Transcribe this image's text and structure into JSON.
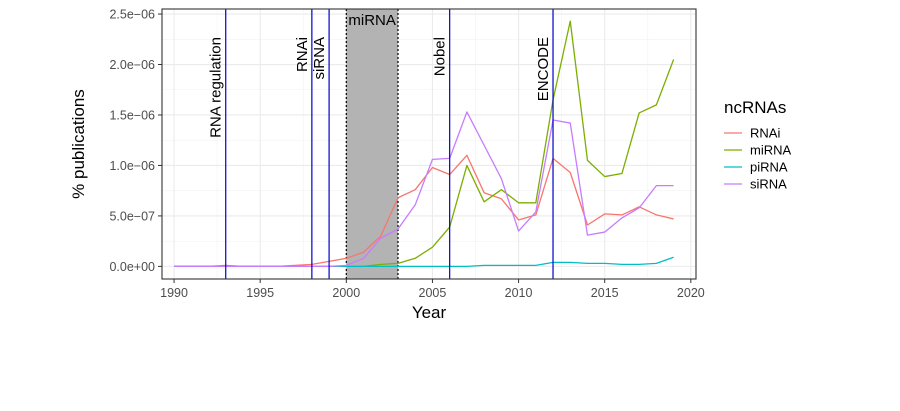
{
  "chart_data": {
    "type": "line",
    "xlabel": "Year",
    "ylabel": "% publications",
    "xlim": [
      1989.3,
      2020.3
    ],
    "ylim": [
      -1.25e-07,
      2.55e-06
    ],
    "x_ticks": [
      1990,
      1995,
      2000,
      2005,
      2010,
      2015,
      2020
    ],
    "x_tick_labels": [
      "1990",
      "1995",
      "2000",
      "2005",
      "2010",
      "2015",
      "2020"
    ],
    "y_ticks": [
      0,
      5e-07,
      1e-06,
      1.5e-06,
      2e-06,
      2.5e-06
    ],
    "y_tick_labels": [
      "0.0e+00",
      "5.0e−07",
      "1.0e−06",
      "1.5e−06",
      "2.0e−06",
      "2.5e−06"
    ],
    "grid": true,
    "legend": {
      "title": "ncRNAs",
      "position": "right"
    },
    "series": [
      {
        "name": "RNAi",
        "color": "#F8766D",
        "x": [
          1990,
          1991,
          1992,
          1993,
          1994,
          1995,
          1996,
          1997,
          1998,
          1999,
          2000,
          2001,
          2002,
          2003,
          2004,
          2005,
          2006,
          2007,
          2008,
          2009,
          2010,
          2011,
          2012,
          2013,
          2014,
          2015,
          2016,
          2017,
          2018,
          2019
        ],
        "values": [
          0,
          0,
          0,
          1e-08,
          0,
          0,
          0,
          1e-08,
          2e-08,
          5e-08,
          8e-08,
          1.4e-07,
          3e-07,
          6.8e-07,
          7.6e-07,
          9.8e-07,
          9.1e-07,
          1.1e-06,
          7.3e-07,
          6.7e-07,
          4.6e-07,
          5.1e-07,
          1.07e-06,
          9.3e-07,
          4.1e-07,
          5.2e-07,
          5.1e-07,
          5.9e-07,
          5.1e-07,
          4.7e-07
        ]
      },
      {
        "name": "miRNA",
        "color": "#7CAE00",
        "x": [
          1990,
          1991,
          1992,
          1993,
          1994,
          1995,
          1996,
          1997,
          1998,
          1999,
          2000,
          2001,
          2002,
          2003,
          2004,
          2005,
          2006,
          2007,
          2008,
          2009,
          2010,
          2011,
          2012,
          2013,
          2014,
          2015,
          2016,
          2017,
          2018,
          2019
        ],
        "values": [
          0,
          0,
          0,
          0,
          0,
          0,
          0,
          0,
          0,
          0,
          0,
          0,
          2e-08,
          3e-08,
          8e-08,
          1.9e-07,
          3.9e-07,
          1e-06,
          6.4e-07,
          7.6e-07,
          6.3e-07,
          6.3e-07,
          1.65e-06,
          2.43e-06,
          1.05e-06,
          8.9e-07,
          9.2e-07,
          1.52e-06,
          1.6e-06,
          2.05e-06
        ]
      },
      {
        "name": "piRNA",
        "color": "#00BFC4",
        "x": [
          1990,
          1991,
          1992,
          1993,
          1994,
          1995,
          1996,
          1997,
          1998,
          1999,
          2000,
          2001,
          2002,
          2003,
          2004,
          2005,
          2006,
          2007,
          2008,
          2009,
          2010,
          2011,
          2012,
          2013,
          2014,
          2015,
          2016,
          2017,
          2018,
          2019
        ],
        "values": [
          0,
          0,
          0,
          0,
          0,
          0,
          0,
          0,
          0,
          0,
          0,
          0,
          0,
          0,
          0,
          0,
          0,
          0,
          1e-08,
          1e-08,
          1e-08,
          1e-08,
          4e-08,
          4e-08,
          3e-08,
          3e-08,
          2e-08,
          2e-08,
          3e-08,
          9e-08
        ]
      },
      {
        "name": "siRNA",
        "color": "#C77CFF",
        "x": [
          1990,
          1991,
          1992,
          1993,
          1994,
          1995,
          1996,
          1997,
          1998,
          1999,
          2000,
          2001,
          2002,
          2003,
          2004,
          2005,
          2006,
          2007,
          2008,
          2009,
          2010,
          2011,
          2012,
          2013,
          2014,
          2015,
          2016,
          2017,
          2018,
          2019
        ],
        "values": [
          0,
          0,
          0,
          0,
          0,
          0,
          0,
          0,
          0,
          0,
          1e-08,
          8e-08,
          2.8e-07,
          3.7e-07,
          6.1e-07,
          1.06e-06,
          1.07e-06,
          1.53e-06,
          1.2e-06,
          8.7e-07,
          3.5e-07,
          5.4e-07,
          1.45e-06,
          1.42e-06,
          3.1e-07,
          3.4e-07,
          4.8e-07,
          5.8e-07,
          8e-07,
          8e-07
        ]
      }
    ],
    "events": [
      {
        "label": "RNA regulation",
        "x": 1993
      },
      {
        "label": "RNAi",
        "x": 1998
      },
      {
        "label": "siRNA",
        "x": 1999
      },
      {
        "label": "Nobel",
        "x": 2006
      },
      {
        "label": "ENCODE",
        "x": 2012
      }
    ],
    "event_line_color": "#0000CC",
    "shaded_region": {
      "label": "miRNA",
      "x_start": 2000,
      "x_end": 2003,
      "fill": "#B3B3B3"
    }
  }
}
